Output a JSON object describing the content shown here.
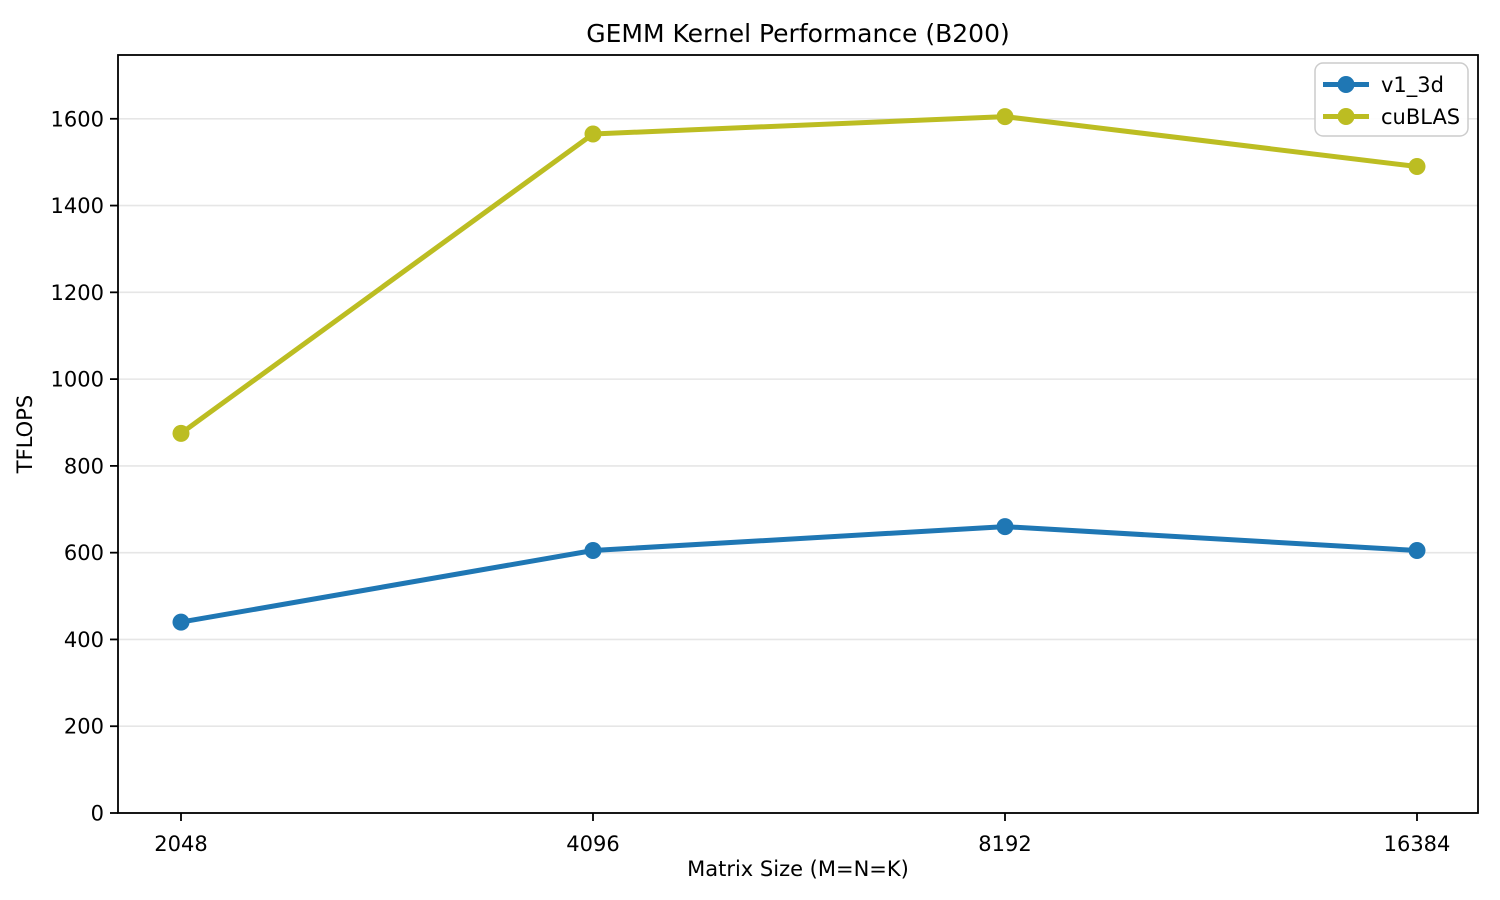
{
  "chart_data": {
    "type": "line",
    "title": "GEMM Kernel Performance (B200)",
    "xlabel": "Matrix Size (M=N=K)",
    "ylabel": "TFLOPS",
    "categories": [
      "2048",
      "4096",
      "8192",
      "16384"
    ],
    "series": [
      {
        "name": "v1_3d",
        "color": "#1f77b4",
        "values": [
          440,
          605,
          660,
          605
        ]
      },
      {
        "name": "cuBLAS",
        "color": "#bcbd22",
        "values": [
          875,
          1565,
          1605,
          1490
        ]
      }
    ],
    "y_ticks": [
      0,
      200,
      400,
      600,
      800,
      1000,
      1200,
      1400,
      1600
    ],
    "ylim": [
      0,
      1747
    ],
    "grid": "horizontal",
    "gridline_color": "#e6e6e6",
    "axis_color": "#000000",
    "legend_position": "top-right",
    "marker": "circle",
    "line_width": 5,
    "marker_radius": 8.5
  }
}
